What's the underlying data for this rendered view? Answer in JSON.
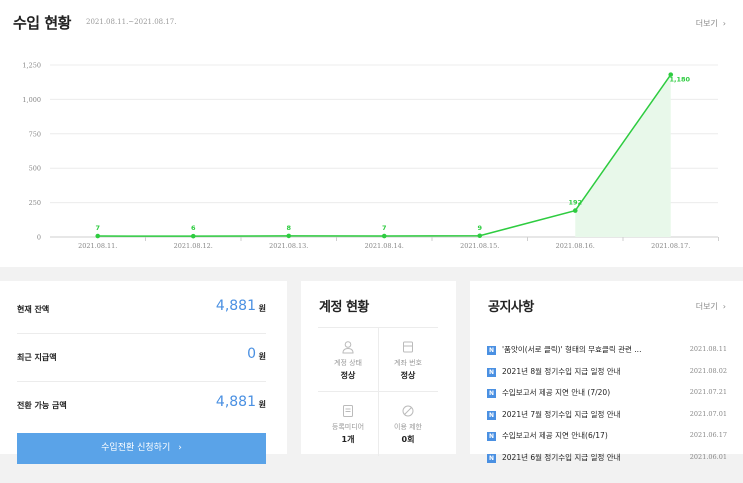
{
  "revenue": {
    "title": "수입 현황",
    "range": "2021.08.11.~2021.08.17.",
    "more": "더보기"
  },
  "chart_data": {
    "type": "line",
    "x": [
      "2021.08.11.",
      "2021.08.12.",
      "2021.08.13.",
      "2021.08.14.",
      "2021.08.15.",
      "2021.08.16.",
      "2021.08.17."
    ],
    "values": [
      7,
      6,
      8,
      7,
      9,
      192,
      1180
    ],
    "data_labels": [
      "7",
      "6",
      "8",
      "7",
      "9",
      "192",
      "1,180"
    ],
    "y_ticks": [
      0,
      250,
      500,
      750,
      1000,
      1250
    ],
    "y_tick_labels": [
      "0",
      "250",
      "500",
      "750",
      "1,000",
      "1,250"
    ],
    "ylim": [
      0,
      1250
    ],
    "grid": true,
    "color": "#2ecc40"
  },
  "balance": {
    "current_label": "현재 잔액",
    "current_value": "4,881",
    "recent_label": "최근 지급액",
    "recent_value": "0",
    "convertible_label": "전환 가능 금액",
    "convertible_value": "4,881",
    "unit": "원",
    "convert_button": "수입전환 신청하기"
  },
  "account": {
    "title": "계정 현황",
    "status_label": "계정 상태",
    "status_value": "정상",
    "bank_label": "계좌 번호",
    "bank_value": "정상",
    "media_label": "등록미디어",
    "media_value": "1개",
    "restrict_label": "이용 제한",
    "restrict_value": "0회"
  },
  "notices": {
    "title": "공지사항",
    "more": "더보기",
    "badge": "N",
    "items": [
      {
        "text": "'품앗이(서로 클릭)' 형태의 무효클릭 관련 ...",
        "date": "2021.08.11"
      },
      {
        "text": "2021년 8월 정기수입 지급 일정 안내",
        "date": "2021.08.02"
      },
      {
        "text": "수입보고서 제공 지연 안내 (7/20)",
        "date": "2021.07.21"
      },
      {
        "text": "2021년 7월 정기수입 지급 일정 안내",
        "date": "2021.07.01"
      },
      {
        "text": "수입보고서 제공 지연 안내(6/17)",
        "date": "2021.06.17"
      },
      {
        "text": "2021년 6월 정기수입 지급 일정 안내",
        "date": "2021.06.01"
      }
    ]
  },
  "colors": {
    "accent": "#4a90e2",
    "button": "#5aa3e8",
    "line": "#2ecc40"
  }
}
